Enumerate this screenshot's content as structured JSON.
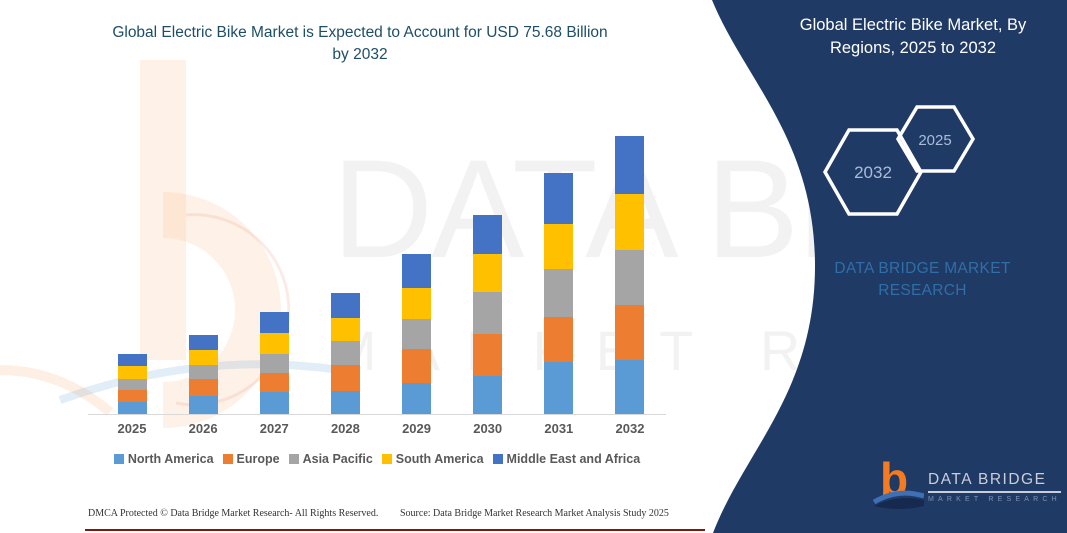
{
  "header": {
    "title_lines": [
      "Global Electric Bike Market is Expected to Account for USD 75.68 Billion",
      "by 2032"
    ]
  },
  "right_panel": {
    "title_lines": [
      "Global Electric Bike Market, By",
      "Regions, 2025 to 2032"
    ],
    "badges": [
      {
        "label": "2032"
      },
      {
        "label": "2025"
      }
    ],
    "brand_lines": [
      "DATA BRIDGE MARKET",
      "RESEARCH"
    ],
    "bg_color": "#203A66",
    "badge_text_color": "#A9BCD8",
    "brand_text_color": "#2F6EA8"
  },
  "logo": {
    "glyph": "b",
    "name": "DATA BRIDGE",
    "subname": "MARKET RESEARCH"
  },
  "watermark": {
    "line1": "DATA BRIDGE",
    "line2": "MARKET RESEARCH"
  },
  "footer": {
    "left": "DMCA Protected © Data Bridge Market Research-  All Rights Reserved.",
    "source": "Source: Data Bridge Market Research  Market Analysis Study 2025"
  },
  "chart_data": {
    "type": "bar",
    "stacked": true,
    "title": "Global Electric Bike Market is Expected to Account for USD 75.68 Billion by 2032",
    "unit": "USD Billion",
    "categories": [
      "2025",
      "2026",
      "2027",
      "2028",
      "2029",
      "2030",
      "2031",
      "2032"
    ],
    "series": [
      {
        "name": "North America",
        "color": "#5B9BD5",
        "values": [
          3.4,
          4.8,
          5.9,
          6.4,
          8.4,
          10.4,
          14.1,
          14.7
        ]
      },
      {
        "name": "Europe",
        "color": "#ED7D31",
        "values": [
          3.2,
          4.8,
          5.2,
          7.0,
          9.4,
          11.4,
          12.3,
          15.0
        ]
      },
      {
        "name": "Asia Pacific",
        "color": "#A5A5A5",
        "values": [
          2.9,
          3.8,
          5.3,
          6.6,
          8.2,
          11.4,
          13.2,
          15.0
        ]
      },
      {
        "name": "South America",
        "color": "#FFC000",
        "values": [
          3.5,
          4.1,
          5.7,
          6.1,
          8.4,
          10.4,
          12.3,
          15.2
        ]
      },
      {
        "name": "Middle East and Africa",
        "color": "#4472C4",
        "values": [
          3.4,
          4.1,
          5.7,
          6.8,
          9.1,
          10.7,
          13.7,
          15.78
        ]
      }
    ],
    "estimated_totals": [
      16.4,
      21.6,
      27.8,
      32.9,
      43.5,
      54.3,
      65.6,
      75.68
    ],
    "ylabel": "",
    "xlabel": "",
    "axes": {
      "x_visible": true,
      "y_visible": false,
      "gridlines": false
    },
    "legend_position": "bottom"
  }
}
